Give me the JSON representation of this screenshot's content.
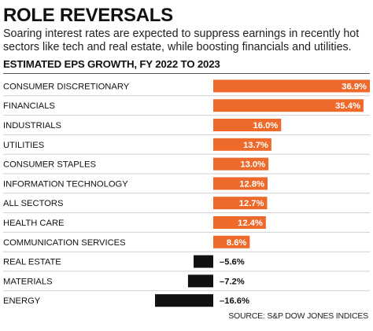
{
  "header": {
    "title": "ROLE REVERSALS",
    "subtitle": "Soaring interest rates are expected to suppress earnings in recently hot sectors like tech and real estate, while boosting financials and utilities."
  },
  "footer": {
    "source": "SOURCE: S&P DOW JONES INDICES"
  },
  "colors": {
    "positive": "#ee6a2b",
    "negative": "#111111",
    "positive_label": "#ffffff",
    "negative_label": "#111111",
    "row_divider": "#cfcfcf"
  },
  "chart_data": {
    "type": "bar",
    "orientation": "horizontal",
    "title": "ESTIMATED EPS GROWTH, FY 2022 TO 2023",
    "categories": [
      "CONSUMER DISCRETIONARY",
      "FINANCIALS",
      "INDUSTRIALS",
      "UTILITIES",
      "CONSUMER STAPLES",
      "INFORMATION TECHNOLOGY",
      "ALL SECTORS",
      "HEALTH CARE",
      "COMMUNICATION SERVICES",
      "REAL ESTATE",
      "MATERIALS",
      "ENERGY"
    ],
    "values": [
      36.9,
      35.4,
      16.0,
      13.7,
      13.0,
      12.8,
      12.7,
      12.4,
      8.6,
      -5.6,
      -7.2,
      -16.6
    ],
    "value_labels": [
      "36.9%",
      "35.4%",
      "16.0%",
      "13.7%",
      "13.0%",
      "12.8%",
      "12.7%",
      "12.4%",
      "8.6%",
      "–5.6%",
      "–7.2%",
      "–16.6%"
    ],
    "unit": "%",
    "xlim": [
      -16.6,
      36.9
    ],
    "grid": false,
    "legend": "none"
  }
}
